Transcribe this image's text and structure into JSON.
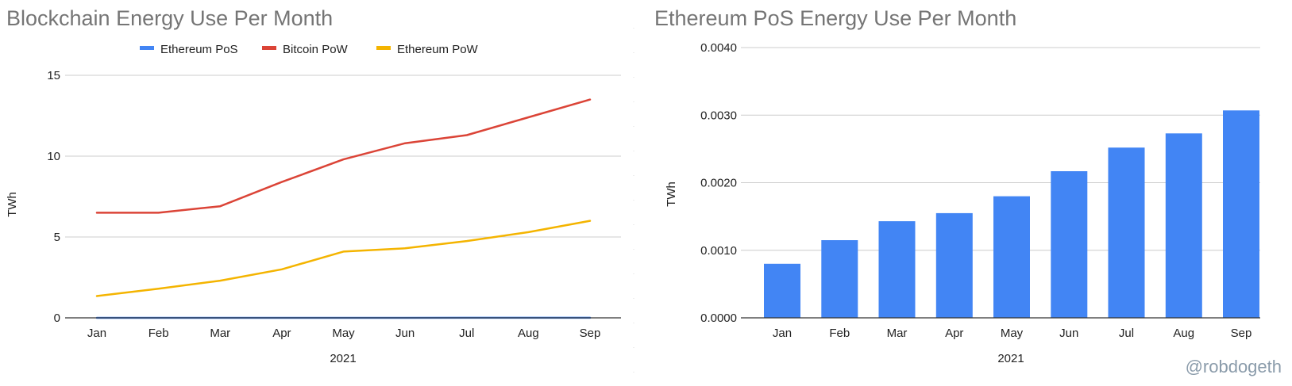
{
  "charts": [
    {
      "title": "Blockchain Energy Use Per Month",
      "ylabel": "TWh",
      "xlabel": "2021",
      "legend": [
        {
          "label": "Ethereum PoS",
          "color": "#4285F4"
        },
        {
          "label": "Bitcoin PoW",
          "color": "#DB4437"
        },
        {
          "label": "Ethereum PoW",
          "color": "#F4B400"
        }
      ]
    },
    {
      "title": "Ethereum PoS Energy Use Per Month",
      "ylabel": "TWh",
      "xlabel": "2021"
    }
  ],
  "watermark": "@robdogeth",
  "chart_data": [
    {
      "type": "line",
      "title": "Blockchain Energy Use Per Month",
      "xlabel": "2021",
      "ylabel": "TWh",
      "categories": [
        "Jan",
        "Feb",
        "Mar",
        "Apr",
        "May",
        "Jun",
        "Jul",
        "Aug",
        "Sep"
      ],
      "ylim": [
        0,
        15
      ],
      "yticks": [
        "0",
        "5",
        "10",
        "15"
      ],
      "yticks_values": [
        0,
        5,
        10,
        15
      ],
      "grid": true,
      "legend_position": "top",
      "series": [
        {
          "name": "Ethereum PoS",
          "color": "#4285F4",
          "values": [
            0.0008,
            0.00115,
            0.00143,
            0.00155,
            0.0018,
            0.00217,
            0.00252,
            0.00273,
            0.00307
          ]
        },
        {
          "name": "Bitcoin PoW",
          "color": "#DB4437",
          "values": [
            6.5,
            6.5,
            6.9,
            8.4,
            9.8,
            10.8,
            11.3,
            12.4,
            13.5
          ]
        },
        {
          "name": "Ethereum PoW",
          "color": "#F4B400",
          "values": [
            1.35,
            1.8,
            2.3,
            3.0,
            4.1,
            4.3,
            4.75,
            5.3,
            6.0
          ]
        }
      ]
    },
    {
      "type": "bar",
      "title": "Ethereum PoS Energy Use Per Month",
      "xlabel": "2021",
      "ylabel": "TWh",
      "categories": [
        "Jan",
        "Feb",
        "Mar",
        "Apr",
        "May",
        "Jun",
        "Jul",
        "Aug",
        "Sep"
      ],
      "ylim": [
        0,
        0.004
      ],
      "yticks": [
        "0.0000",
        "0.0010",
        "0.0020",
        "0.0030",
        "0.0040"
      ],
      "yticks_values": [
        0,
        0.001,
        0.002,
        0.003,
        0.004
      ],
      "grid": true,
      "color": "#4285F4",
      "values": [
        0.0008,
        0.00115,
        0.00143,
        0.00155,
        0.0018,
        0.00217,
        0.00252,
        0.00273,
        0.00307
      ]
    }
  ]
}
